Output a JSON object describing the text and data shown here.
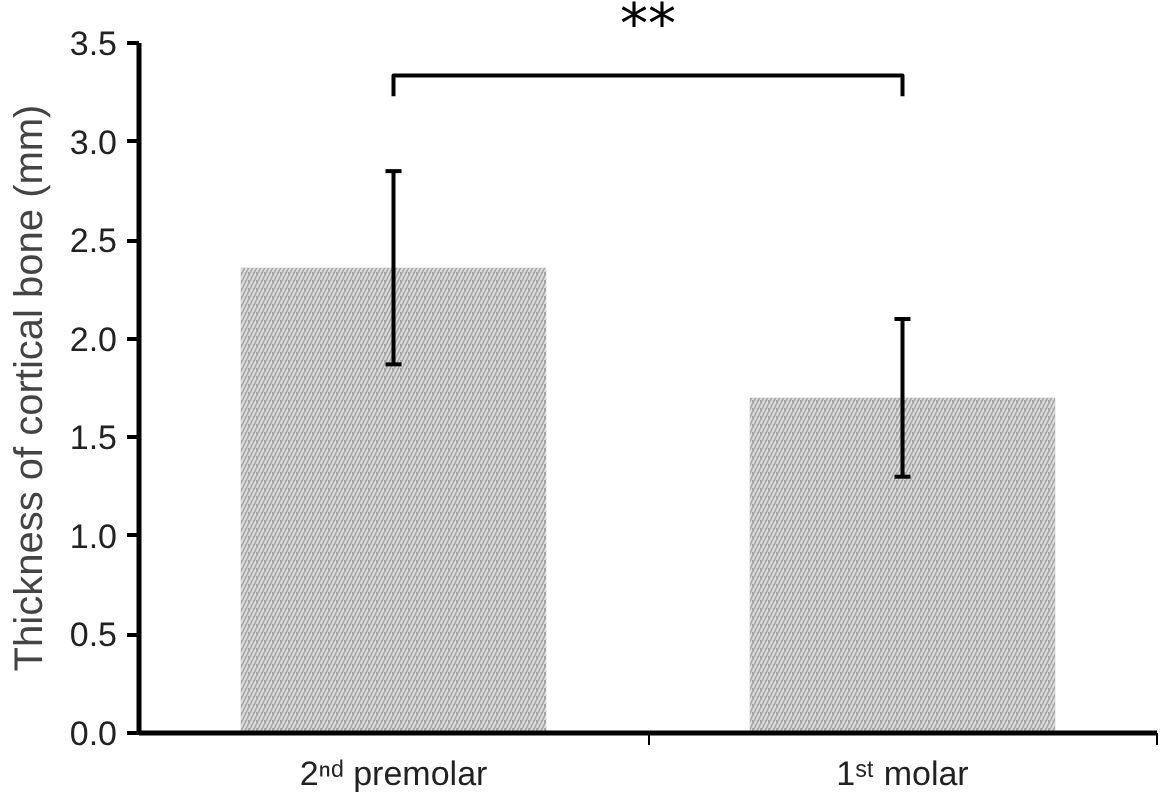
{
  "chart_data": {
    "type": "bar",
    "ylabel": "Thickness of cortical bone (mm)",
    "categories": [
      "2ⁿᵈ premolar",
      "1ˢᵗ molar"
    ],
    "values": [
      2.36,
      1.7
    ],
    "errors": [
      0.49,
      0.4
    ],
    "color": "#a6a6a6",
    "ylim": [
      0,
      3.5
    ],
    "yticks": [
      {
        "value": 0,
        "label": "0.0"
      },
      {
        "value": 0.5,
        "label": "0.5"
      },
      {
        "value": 1,
        "label": "1.0"
      },
      {
        "value": 1.5,
        "label": "1.5"
      },
      {
        "value": 2,
        "label": "2.0"
      },
      {
        "value": 2.5,
        "label": "2.5"
      },
      {
        "value": 3,
        "label": "3.0"
      },
      {
        "value": 3.5,
        "label": "3.5"
      }
    ],
    "grid": false,
    "annotations": [
      "**"
    ]
  }
}
